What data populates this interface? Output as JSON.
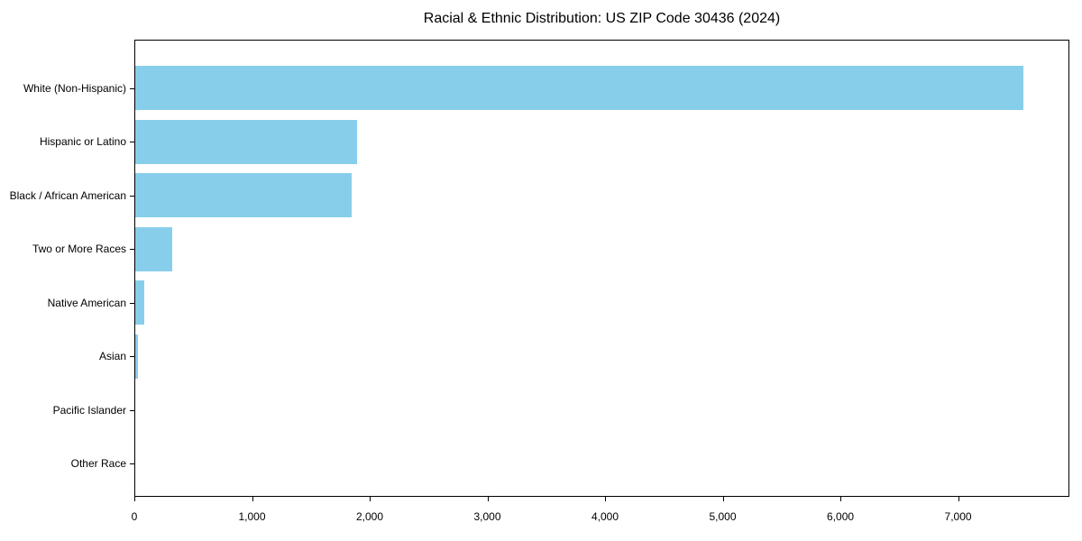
{
  "chart_data": {
    "type": "bar",
    "orientation": "horizontal",
    "title": "Racial & Ethnic Distribution: US ZIP Code 30436 (2024)",
    "categories": [
      "White (Non-Hispanic)",
      "Hispanic or Latino",
      "Black / African American",
      "Two or More Races",
      "Native American",
      "Asian",
      "Pacific Islander",
      "Other Race"
    ],
    "values": [
      7560,
      1890,
      1840,
      315,
      77,
      23,
      0,
      0
    ],
    "xlabel": "",
    "ylabel": "",
    "xlim": [
      0,
      7946
    ],
    "x_ticks": [
      0,
      1000,
      2000,
      3000,
      4000,
      5000,
      6000,
      7000
    ],
    "x_tick_labels": [
      "0",
      "1,000",
      "2,000",
      "3,000",
      "4,000",
      "5,000",
      "6,000",
      "7,000"
    ],
    "bar_color": "#87CEEB",
    "axis_color": "#000000",
    "background_color": "#ffffff",
    "grid": false,
    "legend": null
  }
}
